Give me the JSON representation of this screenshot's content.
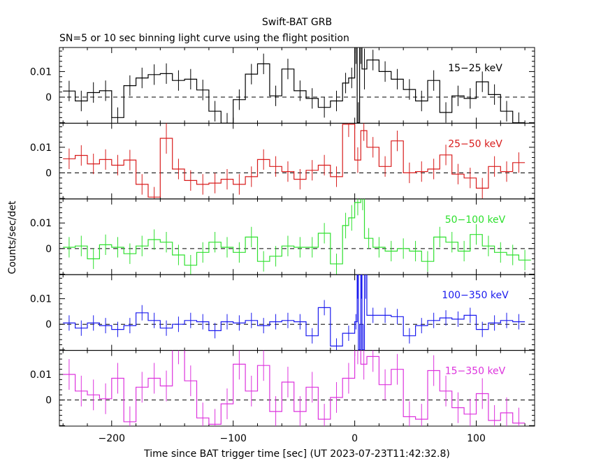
{
  "figure": {
    "title": "Swift-BAT GRB",
    "subtitle": "SN=5 or 10 sec binning light curve using the flight position",
    "ylabel": "Counts/sec/det",
    "xlabel": "Time since BAT trigger time [sec] (UT 2023-07-23T11:42:32.8)"
  },
  "chart_data": {
    "type": "line",
    "step": true,
    "error_bars": true,
    "xlim": [
      -243,
      148
    ],
    "x_ticks": [
      -200,
      -100,
      0,
      100
    ],
    "x_tick_labels": [
      "−200",
      "−100",
      "0",
      "100"
    ],
    "zero_line": "dashed",
    "panels": [
      {
        "label": "15−25 keV",
        "color": "#000000",
        "ylim": [
          -0.0102,
          0.0194
        ],
        "y_ticks": [
          0,
          0.01
        ],
        "y_tick_labels": [
          "0",
          "0.01"
        ],
        "bins": [
          [
            -240,
            0.0024,
            0.004
          ],
          [
            -230,
            -0.0015,
            0.004
          ],
          [
            -220,
            0.0018,
            0.004
          ],
          [
            -210,
            0.0025,
            0.004
          ],
          [
            -200,
            -0.008,
            0.004
          ],
          [
            -190,
            0.0045,
            0.004
          ],
          [
            -180,
            0.0075,
            0.004
          ],
          [
            -170,
            0.0088,
            0.004
          ],
          [
            -160,
            0.0092,
            0.004
          ],
          [
            -150,
            0.0065,
            0.004
          ],
          [
            -140,
            0.007,
            0.004
          ],
          [
            -130,
            0.0028,
            0.004
          ],
          [
            -120,
            -0.0055,
            0.004
          ],
          [
            -110,
            -0.0102,
            0.004
          ],
          [
            -100,
            -0.001,
            0.004
          ],
          [
            -90,
            0.009,
            0.004
          ],
          [
            -80,
            0.013,
            0.004
          ],
          [
            -70,
            0.0005,
            0.004
          ],
          [
            -60,
            0.011,
            0.004
          ],
          [
            -50,
            0.0025,
            0.004
          ],
          [
            -40,
            -0.0005,
            0.004
          ],
          [
            -30,
            -0.004,
            0.004
          ],
          [
            -20,
            -0.0015,
            0.004
          ],
          [
            -10,
            0.0055,
            0.004
          ],
          [
            -5,
            0.0075,
            0.004
          ],
          [
            0,
            0.021,
            0.008
          ],
          [
            2,
            -0.01,
            0.008
          ],
          [
            4,
            0.021,
            0.008
          ],
          [
            6,
            0.011,
            0.008
          ],
          [
            10,
            0.0145,
            0.004
          ],
          [
            20,
            0.01,
            0.004
          ],
          [
            30,
            0.007,
            0.004
          ],
          [
            40,
            0.003,
            0.004
          ],
          [
            50,
            -0.0015,
            0.004
          ],
          [
            60,
            0.0065,
            0.004
          ],
          [
            70,
            -0.006,
            0.004
          ],
          [
            80,
            0.0005,
            0.004
          ],
          [
            90,
            -0.0005,
            0.004
          ],
          [
            100,
            0.006,
            0.004
          ],
          [
            110,
            0.001,
            0.004
          ],
          [
            120,
            -0.0055,
            0.004
          ],
          [
            130,
            -0.01,
            0.004
          ]
        ]
      },
      {
        "label": "25−50 keV",
        "color": "#d81b1b",
        "ylim": [
          -0.0102,
          0.0194
        ],
        "y_ticks": [
          0,
          0.01
        ],
        "y_tick_labels": [
          "0",
          "0.01"
        ],
        "bins": [
          [
            -240,
            0.0055,
            0.004
          ],
          [
            -230,
            0.0068,
            0.004
          ],
          [
            -220,
            0.0035,
            0.004
          ],
          [
            -210,
            0.0052,
            0.004
          ],
          [
            -200,
            0.003,
            0.004
          ],
          [
            -190,
            0.005,
            0.004
          ],
          [
            -180,
            -0.0045,
            0.004
          ],
          [
            -170,
            -0.0095,
            0.004
          ],
          [
            -160,
            0.0135,
            0.006
          ],
          [
            -150,
            0.0015,
            0.004
          ],
          [
            -140,
            -0.003,
            0.004
          ],
          [
            -130,
            -0.0045,
            0.004
          ],
          [
            -120,
            -0.004,
            0.004
          ],
          [
            -110,
            -0.0025,
            0.004
          ],
          [
            -100,
            -0.0045,
            0.004
          ],
          [
            -90,
            -0.0015,
            0.004
          ],
          [
            -80,
            0.0052,
            0.004
          ],
          [
            -70,
            0.0025,
            0.004
          ],
          [
            -60,
            0.0005,
            0.004
          ],
          [
            -50,
            -0.0025,
            0.004
          ],
          [
            -40,
            0.001,
            0.004
          ],
          [
            -30,
            0.003,
            0.004
          ],
          [
            -20,
            -0.0015,
            0.004
          ],
          [
            -10,
            0.019,
            0.005
          ],
          [
            0,
            0.005,
            0.005
          ],
          [
            5,
            0.0165,
            0.004
          ],
          [
            10,
            0.01,
            0.004
          ],
          [
            20,
            0.0025,
            0.004
          ],
          [
            30,
            0.0125,
            0.004
          ],
          [
            40,
            0,
            0.004
          ],
          [
            50,
            0.0005,
            0.004
          ],
          [
            60,
            0.0015,
            0.004
          ],
          [
            70,
            0.007,
            0.004
          ],
          [
            80,
            -0.0005,
            0.004
          ],
          [
            90,
            -0.002,
            0.004
          ],
          [
            100,
            -0.006,
            0.004
          ],
          [
            110,
            0.0025,
            0.004
          ],
          [
            120,
            0.0005,
            0.004
          ],
          [
            130,
            0.004,
            0.004
          ]
        ]
      },
      {
        "label": "50−100 keV",
        "color": "#2ee02e",
        "ylim": [
          -0.0102,
          0.0194
        ],
        "y_ticks": [
          0,
          0.01
        ],
        "y_tick_labels": [
          "0",
          "0.01"
        ],
        "bins": [
          [
            -240,
            0.0005,
            0.004
          ],
          [
            -230,
            0.001,
            0.004
          ],
          [
            -220,
            -0.004,
            0.004
          ],
          [
            -210,
            0.0015,
            0.004
          ],
          [
            -200,
            0.0005,
            0.004
          ],
          [
            -190,
            -0.002,
            0.004
          ],
          [
            -180,
            0.001,
            0.004
          ],
          [
            -170,
            0.0035,
            0.004
          ],
          [
            -160,
            0.0025,
            0.004
          ],
          [
            -150,
            -0.0025,
            0.004
          ],
          [
            -140,
            -0.0065,
            0.004
          ],
          [
            -130,
            -0.0015,
            0.004
          ],
          [
            -120,
            0.0025,
            0.004
          ],
          [
            -110,
            0.0005,
            0.004
          ],
          [
            -100,
            -0.0015,
            0.004
          ],
          [
            -90,
            0.0045,
            0.004
          ],
          [
            -80,
            -0.005,
            0.004
          ],
          [
            -70,
            -0.003,
            0.004
          ],
          [
            -60,
            0.001,
            0.004
          ],
          [
            -50,
            0.0005,
            0.004
          ],
          [
            -40,
            0.0005,
            0.004
          ],
          [
            -30,
            0.006,
            0.004
          ],
          [
            -20,
            -0.006,
            0.004
          ],
          [
            -10,
            0.009,
            0.005
          ],
          [
            -5,
            0.012,
            0.005
          ],
          [
            0,
            0.018,
            0.005
          ],
          [
            5,
            0.02,
            0.005
          ],
          [
            8,
            0.004,
            0.004
          ],
          [
            15,
            0.0005,
            0.004
          ],
          [
            25,
            -0.001,
            0.004
          ],
          [
            35,
            0,
            0.004
          ],
          [
            45,
            -0.001,
            0.004
          ],
          [
            55,
            -0.005,
            0.004
          ],
          [
            65,
            0.0045,
            0.004
          ],
          [
            75,
            0.0025,
            0.004
          ],
          [
            85,
            -0.001,
            0.004
          ],
          [
            95,
            0.0055,
            0.004
          ],
          [
            105,
            0.001,
            0.004
          ],
          [
            115,
            -0.0015,
            0.004
          ],
          [
            125,
            -0.0025,
            0.004
          ],
          [
            135,
            -0.0045,
            0.004
          ]
        ]
      },
      {
        "label": "100−350 keV",
        "color": "#1a1aee",
        "ylim": [
          -0.0102,
          0.0194
        ],
        "y_ticks": [
          0,
          0.01
        ],
        "y_tick_labels": [
          "0",
          "0.01"
        ],
        "bins": [
          [
            -240,
            0.0005,
            0.003
          ],
          [
            -230,
            -0.0015,
            0.003
          ],
          [
            -220,
            0.0005,
            0.003
          ],
          [
            -210,
            -0.0005,
            0.003
          ],
          [
            -200,
            -0.002,
            0.003
          ],
          [
            -190,
            -0.0005,
            0.003
          ],
          [
            -180,
            0.0045,
            0.003
          ],
          [
            -170,
            0.0015,
            0.003
          ],
          [
            -160,
            -0.0015,
            0.003
          ],
          [
            -150,
            0,
            0.003
          ],
          [
            -140,
            0.0015,
            0.003
          ],
          [
            -130,
            0.001,
            0.003
          ],
          [
            -120,
            -0.0025,
            0.003
          ],
          [
            -110,
            0.001,
            0.003
          ],
          [
            -100,
            0.0005,
            0.003
          ],
          [
            -90,
            0.0015,
            0.003
          ],
          [
            -80,
            -0.0005,
            0.003
          ],
          [
            -70,
            0.001,
            0.003
          ],
          [
            -60,
            0.0015,
            0.003
          ],
          [
            -50,
            0.001,
            0.003
          ],
          [
            -40,
            -0.0045,
            0.003
          ],
          [
            -30,
            0.0065,
            0.003
          ],
          [
            -20,
            -0.0085,
            0.003
          ],
          [
            -10,
            -0.0035,
            0.003
          ],
          [
            0,
            0.001,
            0.003
          ],
          [
            2,
            0.02,
            0.01
          ],
          [
            3,
            -0.01,
            0.01
          ],
          [
            5,
            0.02,
            0.01
          ],
          [
            6,
            -0.01,
            0.01
          ],
          [
            8,
            0.02,
            0.01
          ],
          [
            10,
            0.0035,
            0.003
          ],
          [
            20,
            0.0035,
            0.003
          ],
          [
            30,
            0.003,
            0.003
          ],
          [
            40,
            -0.0045,
            0.003
          ],
          [
            50,
            -0.0005,
            0.003
          ],
          [
            60,
            0.0015,
            0.003
          ],
          [
            70,
            0.0025,
            0.003
          ],
          [
            80,
            0.002,
            0.003
          ],
          [
            90,
            0.0035,
            0.003
          ],
          [
            100,
            -0.002,
            0.003
          ],
          [
            110,
            0.0005,
            0.003
          ],
          [
            120,
            0.0015,
            0.003
          ],
          [
            130,
            0.001,
            0.003
          ]
        ]
      },
      {
        "label": "15−350 keV",
        "color": "#dd33dd",
        "ylim": [
          -0.0102,
          0.0194
        ],
        "y_ticks": [
          0,
          0.01
        ],
        "y_tick_labels": [
          "0",
          "0.01"
        ],
        "bins": [
          [
            -240,
            0.01,
            0.006
          ],
          [
            -230,
            0.0035,
            0.006
          ],
          [
            -220,
            0.002,
            0.006
          ],
          [
            -210,
            0.0005,
            0.006
          ],
          [
            -200,
            0.0085,
            0.006
          ],
          [
            -190,
            -0.0085,
            0.006
          ],
          [
            -180,
            0.005,
            0.006
          ],
          [
            -170,
            0.0085,
            0.006
          ],
          [
            -160,
            0.0055,
            0.006
          ],
          [
            -150,
            0.02,
            0.006
          ],
          [
            -140,
            0.0075,
            0.006
          ],
          [
            -130,
            -0.007,
            0.006
          ],
          [
            -120,
            -0.0095,
            0.006
          ],
          [
            -110,
            -0.0015,
            0.006
          ],
          [
            -100,
            0.014,
            0.006
          ],
          [
            -90,
            0.0035,
            0.006
          ],
          [
            -80,
            0.0135,
            0.006
          ],
          [
            -70,
            -0.0045,
            0.006
          ],
          [
            -60,
            0.007,
            0.006
          ],
          [
            -50,
            -0.0045,
            0.006
          ],
          [
            -40,
            0.005,
            0.006
          ],
          [
            -30,
            -0.0075,
            0.006
          ],
          [
            -20,
            0.001,
            0.006
          ],
          [
            -10,
            0.0085,
            0.006
          ],
          [
            0,
            0.02,
            0.006
          ],
          [
            5,
            0.014,
            0.006
          ],
          [
            10,
            0.017,
            0.006
          ],
          [
            20,
            0.006,
            0.006
          ],
          [
            30,
            0.012,
            0.006
          ],
          [
            40,
            -0.0065,
            0.006
          ],
          [
            50,
            -0.0075,
            0.006
          ],
          [
            60,
            0.0115,
            0.006
          ],
          [
            70,
            0.0035,
            0.006
          ],
          [
            80,
            -0.003,
            0.006
          ],
          [
            90,
            -0.0055,
            0.006
          ],
          [
            100,
            0.0025,
            0.006
          ],
          [
            110,
            -0.008,
            0.006
          ],
          [
            120,
            -0.005,
            0.006
          ],
          [
            130,
            -0.009,
            0.006
          ]
        ]
      }
    ]
  }
}
